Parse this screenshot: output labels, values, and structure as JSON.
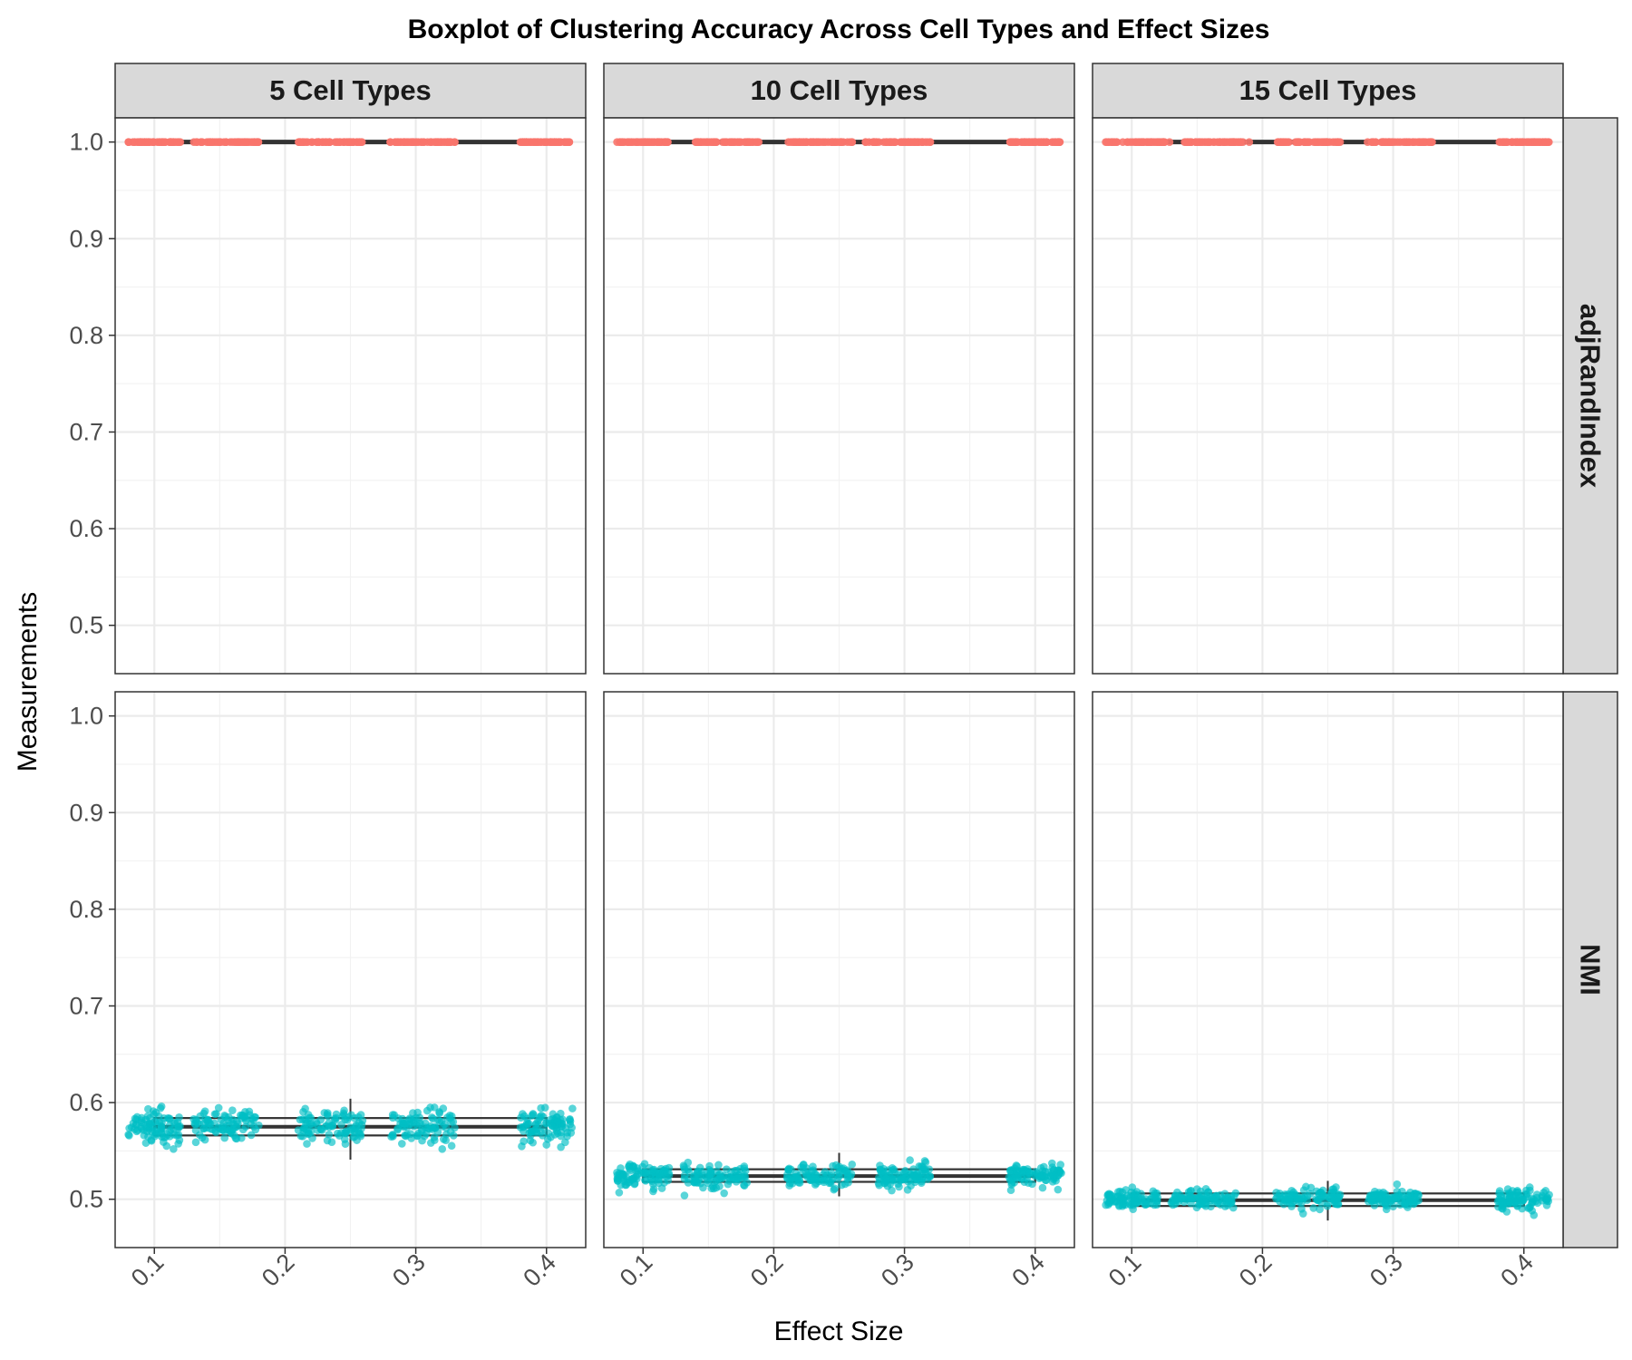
{
  "chart_data": {
    "type": "box",
    "title": "Boxplot of Clustering Accuracy Across Cell Types and Effect Sizes",
    "xlabel": "Effect Size",
    "ylabel": "Measurements",
    "column_facets": [
      "5 Cell Types",
      "10 Cell Types",
      "15 Cell Types"
    ],
    "row_facets": [
      "adjRandIndex",
      "NMI"
    ],
    "x_ticks": [
      "0.1",
      "0.2",
      "0.3",
      "0.4"
    ],
    "y_ticks": [
      "0.5",
      "0.6",
      "0.7",
      "0.8",
      "0.9",
      "1.0"
    ],
    "xlim": [
      0.07,
      0.43
    ],
    "ylim": [
      0.45,
      1.025
    ],
    "grid": true,
    "colors": {
      "adjRandIndex": "#F8766D",
      "NMI": "#00BFC4",
      "box": "#333333",
      "strip": "#D9D9D9"
    },
    "boxes": [
      {
        "row": "adjRandIndex",
        "col": "5 Cell Types",
        "x_min": 0.1,
        "x_max": 0.4,
        "q1": 1.0,
        "median": 1.0,
        "q3": 1.0,
        "whisker_low": 1.0,
        "whisker_high": 1.0,
        "center": 0.25
      },
      {
        "row": "adjRandIndex",
        "col": "10 Cell Types",
        "x_min": 0.1,
        "x_max": 0.4,
        "q1": 1.0,
        "median": 1.0,
        "q3": 1.0,
        "whisker_low": 1.0,
        "whisker_high": 1.0,
        "center": 0.25
      },
      {
        "row": "adjRandIndex",
        "col": "15 Cell Types",
        "x_min": 0.1,
        "x_max": 0.4,
        "q1": 1.0,
        "median": 1.0,
        "q3": 1.0,
        "whisker_low": 1.0,
        "whisker_high": 1.0,
        "center": 0.25
      },
      {
        "row": "NMI",
        "col": "5 Cell Types",
        "x_min": 0.1,
        "x_max": 0.4,
        "q1": 0.566,
        "median": 0.575,
        "q3": 0.584,
        "whisker_low": 0.541,
        "whisker_high": 0.604,
        "center": 0.25
      },
      {
        "row": "NMI",
        "col": "10 Cell Types",
        "x_min": 0.1,
        "x_max": 0.4,
        "q1": 0.518,
        "median": 0.524,
        "q3": 0.531,
        "whisker_low": 0.503,
        "whisker_high": 0.548,
        "center": 0.25
      },
      {
        "row": "NMI",
        "col": "15 Cell Types",
        "x_min": 0.1,
        "x_max": 0.4,
        "q1": 0.493,
        "median": 0.499,
        "q3": 0.506,
        "whisker_low": 0.478,
        "whisker_high": 0.519,
        "center": 0.25
      }
    ],
    "point_clusters": [
      {
        "row": "adjRandIndex",
        "col": "5 Cell Types",
        "x_ranges": [
          [
            0.08,
            0.12
          ],
          [
            0.13,
            0.18
          ],
          [
            0.21,
            0.26
          ],
          [
            0.28,
            0.33
          ],
          [
            0.38,
            0.42
          ]
        ],
        "y_center": 1.0,
        "y_spread": 0.0
      },
      {
        "row": "adjRandIndex",
        "col": "10 Cell Types",
        "x_ranges": [
          [
            0.08,
            0.12
          ],
          [
            0.14,
            0.19
          ],
          [
            0.21,
            0.26
          ],
          [
            0.27,
            0.32
          ],
          [
            0.38,
            0.42
          ]
        ],
        "y_center": 1.0,
        "y_spread": 0.0
      },
      {
        "row": "adjRandIndex",
        "col": "15 Cell Types",
        "x_ranges": [
          [
            0.08,
            0.13
          ],
          [
            0.14,
            0.19
          ],
          [
            0.21,
            0.26
          ],
          [
            0.28,
            0.33
          ],
          [
            0.38,
            0.42
          ]
        ],
        "y_center": 1.0,
        "y_spread": 0.0
      },
      {
        "row": "NMI",
        "col": "5 Cell Types",
        "x_ranges": [
          [
            0.08,
            0.12
          ],
          [
            0.13,
            0.18
          ],
          [
            0.21,
            0.26
          ],
          [
            0.28,
            0.33
          ],
          [
            0.38,
            0.42
          ]
        ],
        "y_center": 0.575,
        "y_spread": 0.016
      },
      {
        "row": "NMI",
        "col": "10 Cell Types",
        "x_ranges": [
          [
            0.08,
            0.12
          ],
          [
            0.13,
            0.18
          ],
          [
            0.21,
            0.26
          ],
          [
            0.28,
            0.32
          ],
          [
            0.38,
            0.42
          ]
        ],
        "y_center": 0.524,
        "y_spread": 0.011
      },
      {
        "row": "NMI",
        "col": "15 Cell Types",
        "x_ranges": [
          [
            0.08,
            0.12
          ],
          [
            0.13,
            0.18
          ],
          [
            0.21,
            0.26
          ],
          [
            0.28,
            0.32
          ],
          [
            0.38,
            0.42
          ]
        ],
        "y_center": 0.5,
        "y_spread": 0.009
      }
    ]
  }
}
